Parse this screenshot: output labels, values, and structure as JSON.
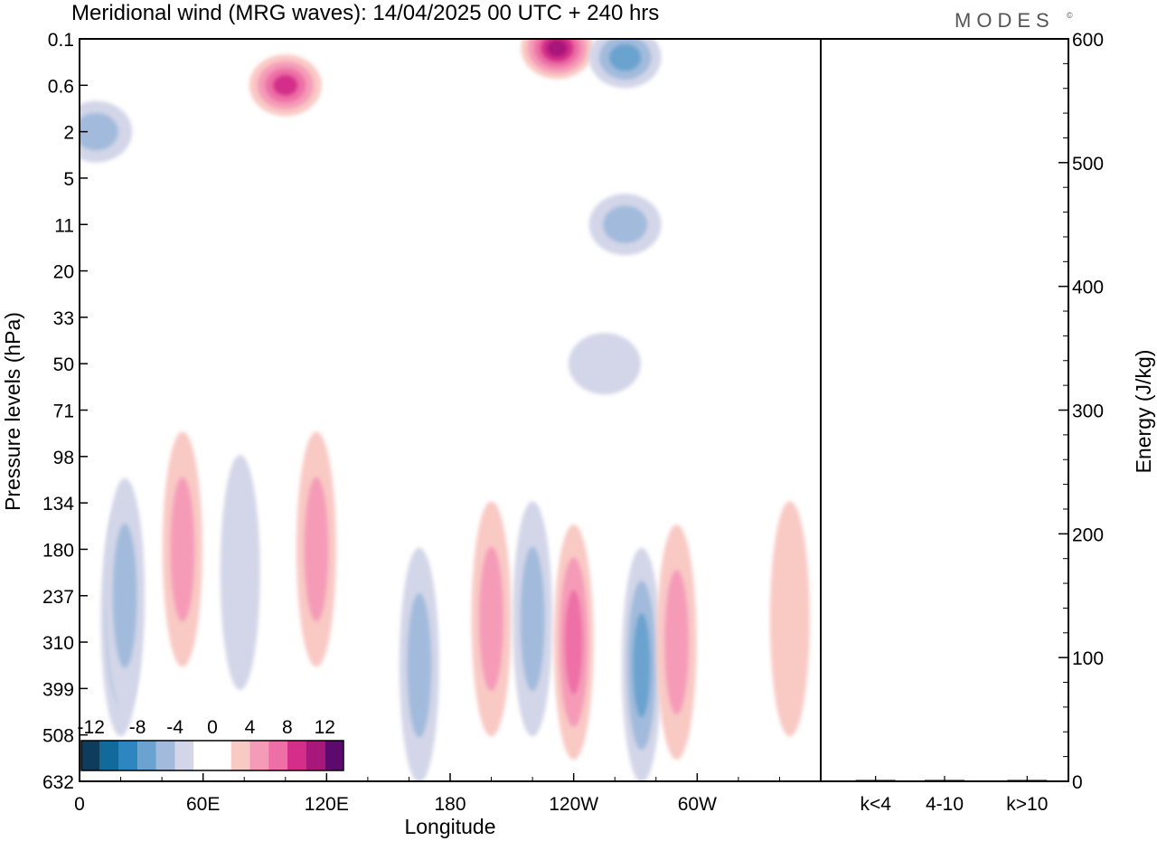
{
  "title": "Meridional wind (MRG waves):  14/04/2025  00 UTC  + 240 hrs",
  "brand": "MODES",
  "brand_mark": "©",
  "chart_data": [
    {
      "type": "heatmap",
      "xlabel": "Longitude",
      "ylabel": "Pressure levels (hPa)",
      "x_ticks": [
        "0",
        "60E",
        "120E",
        "180",
        "120W",
        "60W"
      ],
      "y_ticks": [
        "0.1",
        "0.6",
        "2",
        "5",
        "11",
        "20",
        "33",
        "50",
        "71",
        "98",
        "134",
        "180",
        "237",
        "310",
        "399",
        "508",
        "632"
      ],
      "colorbar": {
        "labels": [
          "-12",
          "-8",
          "-4",
          "0",
          "4",
          "8",
          "12"
        ],
        "colors": [
          "#0d3c5c",
          "#126a9c",
          "#2e86c1",
          "#6aa3cf",
          "#a2bbdc",
          "#d3d6e8",
          "#ffffff",
          "#ffffff",
          "#f9c9c4",
          "#f59bb8",
          "#ee6fa6",
          "#d42e8a",
          "#a8177a",
          "#5c0a6e"
        ]
      },
      "features": [
        {
          "lon": 20,
          "p_level": 12.5,
          "value": -7
        },
        {
          "lon": 22,
          "p_level": 12.0,
          "value": -4
        },
        {
          "lon": 50,
          "p_level": 11.0,
          "value": 5
        },
        {
          "lon": 78,
          "p_level": 11.5,
          "value": -3
        },
        {
          "lon": 115,
          "p_level": 11.0,
          "value": 4
        },
        {
          "lon": 165,
          "p_level": 13.5,
          "value": -4
        },
        {
          "lon": 200,
          "p_level": 12.5,
          "value": 5
        },
        {
          "lon": 220,
          "p_level": 12.5,
          "value": -5
        },
        {
          "lon": 240,
          "p_level": 13.0,
          "value": 6
        },
        {
          "lon": 273,
          "p_level": 13.5,
          "value": -7
        },
        {
          "lon": 290,
          "p_level": 13.0,
          "value": 4
        },
        {
          "lon": 345,
          "p_level": 12.5,
          "value": 3
        },
        {
          "lon": 100,
          "p_level": 1.0,
          "value": 8
        },
        {
          "lon": 232,
          "p_level": 0.2,
          "value": 10
        },
        {
          "lon": 265,
          "p_level": 0.4,
          "value": -6
        },
        {
          "lon": 8,
          "p_level": 2.0,
          "value": -4
        },
        {
          "lon": 265,
          "p_level": 4.0,
          "value": -4
        },
        {
          "lon": 255,
          "p_level": 7.0,
          "value": -3
        }
      ]
    },
    {
      "type": "bar",
      "categories": [
        "k<4",
        "4-10",
        "k>10"
      ],
      "values": [
        0,
        1,
        0
      ],
      "ylabel": "Energy (J/kg)",
      "ylim": [
        0,
        600
      ],
      "y_ticks": [
        "0",
        "100",
        "200",
        "300",
        "400",
        "500",
        "600"
      ]
    }
  ]
}
